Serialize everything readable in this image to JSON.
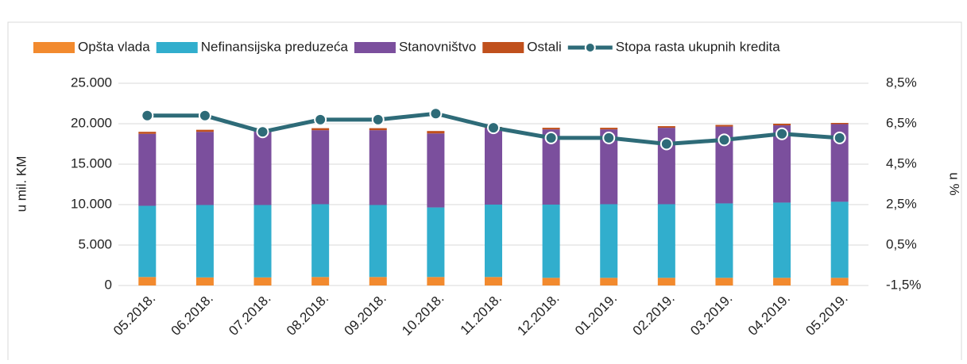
{
  "chart_data": {
    "type": "bar",
    "categories": [
      "05.2018.",
      "06.2018.",
      "07.2018.",
      "08.2018.",
      "09.2018.",
      "10.2018.",
      "11.2018.",
      "12.2018.",
      "01.2019.",
      "02.2019.",
      "03.2019.",
      "04.2019.",
      "05.2019."
    ],
    "series": [
      {
        "name": "Opšta vlada",
        "color": "#f28a2e",
        "values": [
          1050,
          1000,
          1000,
          1050,
          1050,
          1050,
          1050,
          950,
          950,
          950,
          950,
          950,
          950
        ]
      },
      {
        "name": "Nefinansijska preduzeća",
        "color": "#31aecd",
        "values": [
          8800,
          8950,
          8950,
          9000,
          8900,
          8600,
          8950,
          9050,
          9100,
          9100,
          9200,
          9300,
          9400
        ]
      },
      {
        "name": "Stanovništvo",
        "color": "#7b4f9d",
        "values": [
          8900,
          9050,
          9150,
          9150,
          9250,
          9150,
          9450,
          9300,
          9250,
          9450,
          9500,
          9550,
          9600
        ]
      },
      {
        "name": "Ostali",
        "color": "#c0501c",
        "values": [
          250,
          250,
          200,
          250,
          250,
          300,
          150,
          200,
          200,
          200,
          200,
          200,
          150
        ]
      },
      {
        "name": "Stopa rasta ukupnih kredita",
        "color": "#2e6b78",
        "type": "line",
        "axis": "y2",
        "values": [
          6.9,
          6.9,
          6.1,
          6.7,
          6.7,
          7.0,
          6.3,
          5.8,
          5.8,
          5.5,
          5.7,
          6.0,
          5.8
        ]
      }
    ],
    "ylabel": "u mil. KM",
    "y2label": "u %",
    "ylim": [
      0,
      25000
    ],
    "yticks": [
      0,
      {
        "value": 5000,
        "label": "5.000"
      },
      {
        "value": 10000,
        "label": "10.000"
      },
      {
        "value": 15000,
        "label": "15.000"
      },
      {
        "value": 20000,
        "label": "20.000"
      },
      {
        "value": 25000,
        "label": "25.000"
      }
    ],
    "y2lim": [
      -1.5,
      8.5
    ],
    "y2ticks": [
      {
        "value": -1.5,
        "label": "-1,5%"
      },
      {
        "value": 0.5,
        "label": "0,5%"
      },
      {
        "value": 2.5,
        "label": "2,5%"
      },
      {
        "value": 4.5,
        "label": "4,5%"
      },
      {
        "value": 6.5,
        "label": "6,5%"
      },
      {
        "value": 8.5,
        "label": "8,5%"
      }
    ],
    "grid": true,
    "legend": "top"
  }
}
